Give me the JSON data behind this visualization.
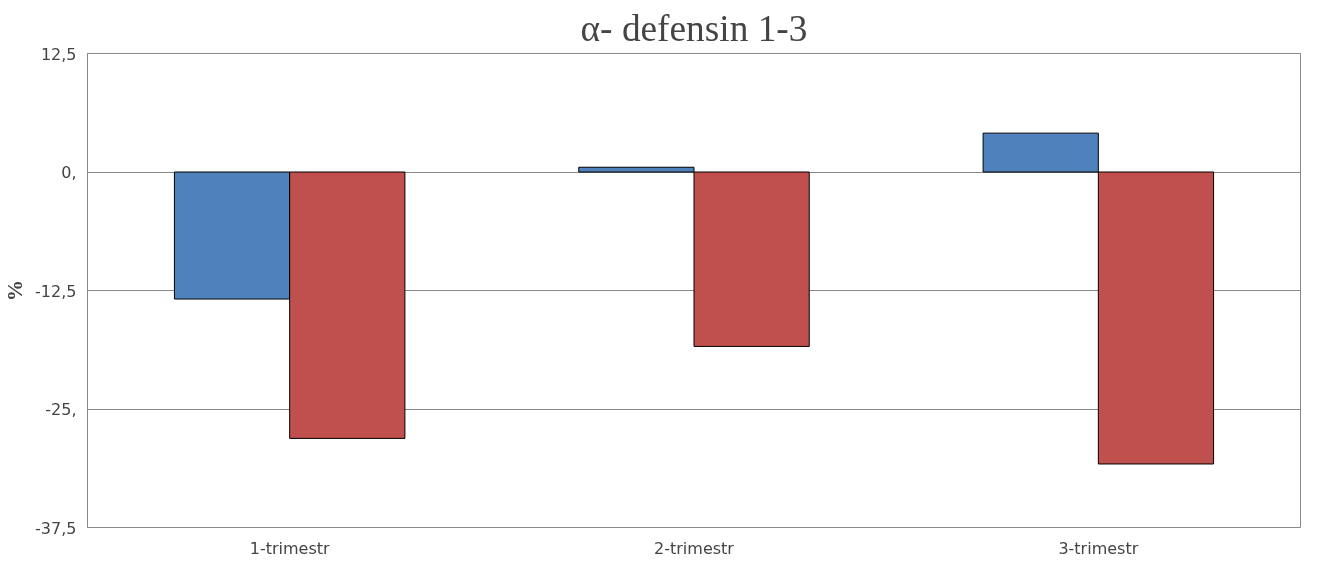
{
  "chart_data": {
    "type": "bar",
    "title": "α- defensin 1-3",
    "ylabel": "%",
    "categories": [
      "1-trimestr",
      "2-trimestr",
      "3-trimestr"
    ],
    "series": [
      {
        "color": "#4f81bd",
        "values": [
          -13.4,
          0.5,
          4.1
        ]
      },
      {
        "color": "#c0504d",
        "values": [
          -28.1,
          -18.4,
          -30.8
        ]
      }
    ],
    "ylim": [
      -37.5,
      12.5
    ],
    "yticks": [
      {
        "value": 12.5,
        "label": "12,5"
      },
      {
        "value": 0,
        "label": "0,"
      },
      {
        "value": -12.5,
        "label": "-12,5"
      },
      {
        "value": -25,
        "label": "-25,"
      },
      {
        "value": -37.5,
        "label": "-37,5"
      }
    ],
    "grid": "y"
  }
}
